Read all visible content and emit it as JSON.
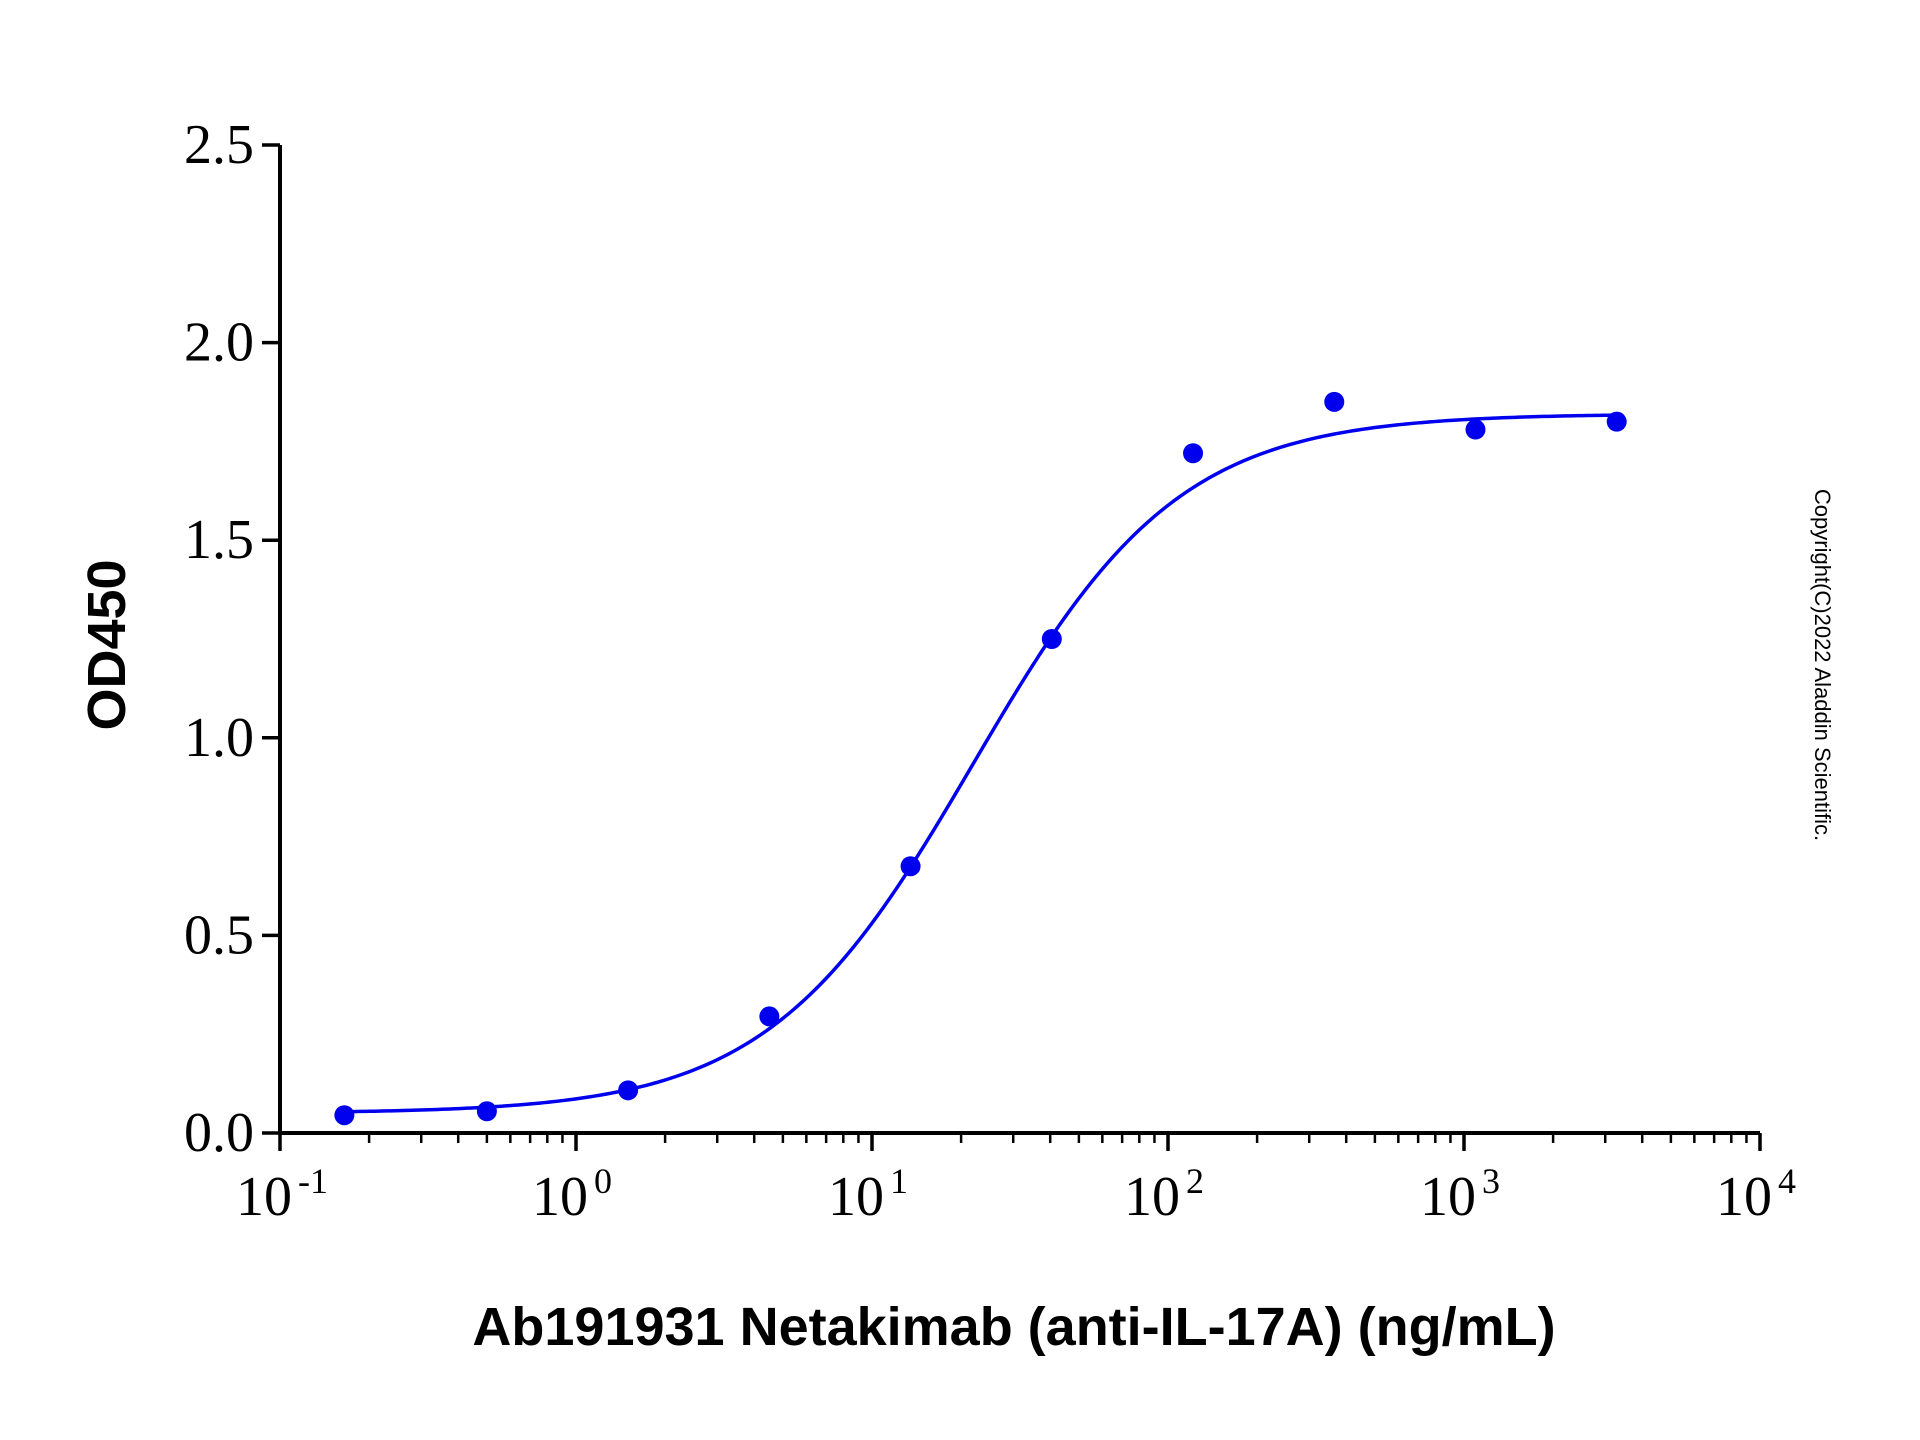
{
  "chart_data": {
    "type": "scatter",
    "title": "",
    "xlabel": "Ab191931 Netakimab (anti-IL-17A) (ng/mL)",
    "ylabel": "OD450",
    "x_scale": "log",
    "xlim": [
      0.1,
      10000
    ],
    "ylim": [
      0.0,
      2.5
    ],
    "grid": false,
    "legend": "none",
    "color": "#0000ee",
    "x_ticks": [
      {
        "base": "10",
        "exp": "-1"
      },
      {
        "base": "10",
        "exp": "0"
      },
      {
        "base": "10",
        "exp": "1"
      },
      {
        "base": "10",
        "exp": "2"
      },
      {
        "base": "10",
        "exp": "3"
      },
      {
        "base": "10",
        "exp": "4"
      }
    ],
    "y_ticks": [
      "0.0",
      "0.5",
      "1.0",
      "1.5",
      "2.0",
      "2.5"
    ],
    "series": [
      {
        "x": [
          0.165,
          0.5,
          1.5,
          4.5,
          13.5,
          40.5,
          121.5,
          364.5,
          1093.5,
          3280.5
        ],
        "y": [
          0.045,
          0.055,
          0.108,
          0.295,
          0.675,
          1.25,
          1.72,
          1.85,
          1.78,
          1.8
        ]
      }
    ],
    "fit": {
      "model": "4PL",
      "bottom": 0.05,
      "top": 1.82,
      "ec50": 22,
      "hill": 1.25,
      "x_range": [
        0.165,
        3280.5
      ]
    }
  },
  "copyright": "Copyright(C)2022 Aladdin Scientific."
}
